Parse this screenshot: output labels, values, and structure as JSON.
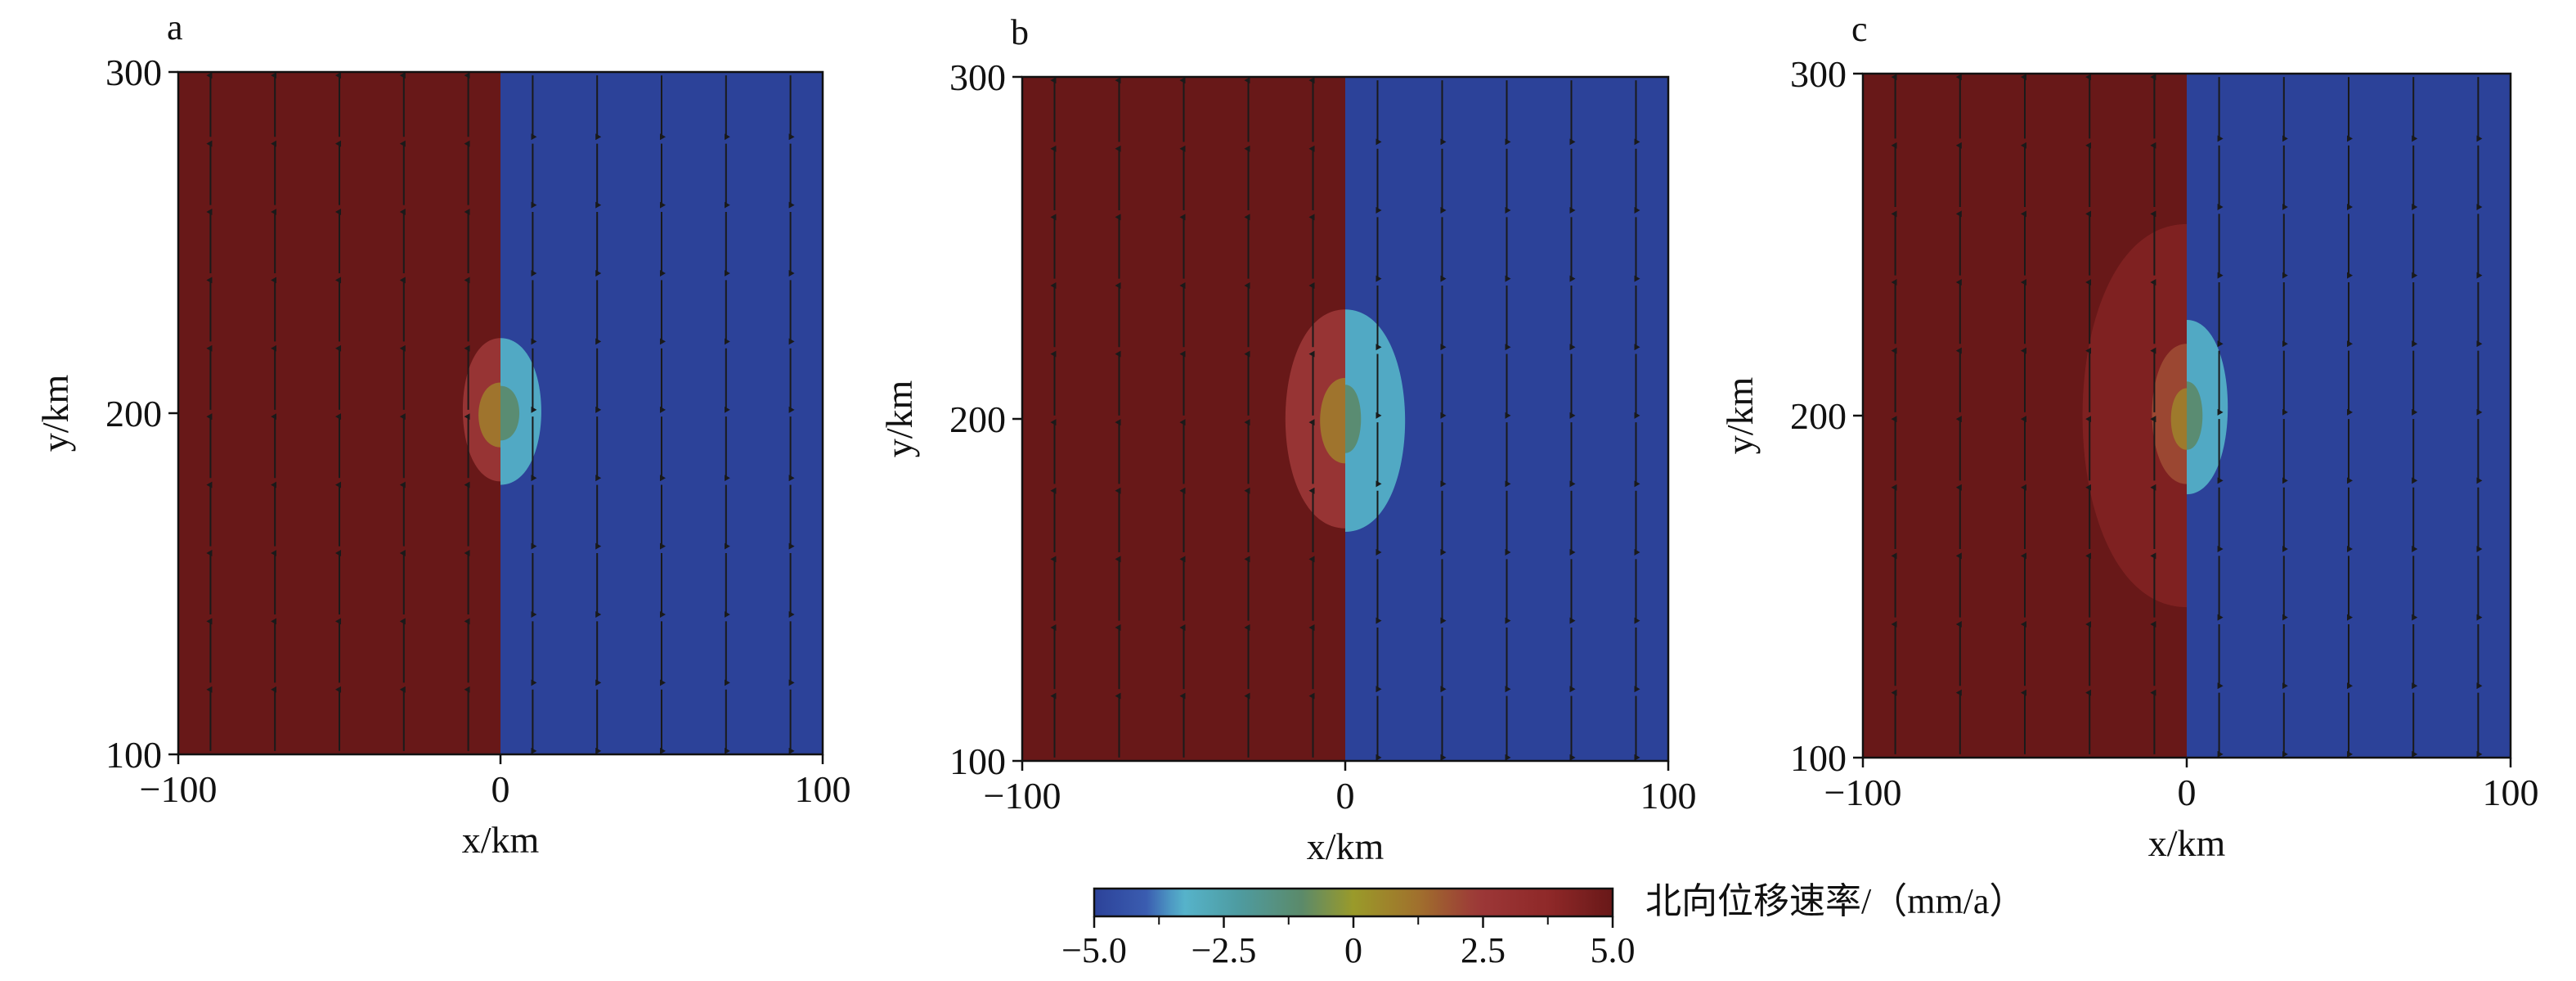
{
  "chart_data": [
    {
      "type": "heatmap",
      "panel_label": "a",
      "xlabel": "x/km",
      "ylabel": "y/km",
      "xlim": [
        -100,
        100
      ],
      "ylim": [
        100,
        300
      ],
      "xticks": [
        "−100",
        "0",
        "100"
      ],
      "yticks": [
        "100",
        "200",
        "300"
      ],
      "far_field": {
        "west_of_fault_mm_a": 5.0,
        "east_of_fault_mm_a": -5.0
      },
      "fault_x_km": 0,
      "anomaly_zones": [
        {
          "side": "west",
          "value_mm_a": 2.5,
          "y_range_km": [
            180,
            222
          ],
          "x_range_km": [
            -12,
            0
          ]
        },
        {
          "side": "west",
          "value_mm_a": 1.0,
          "y_range_km": [
            190,
            209
          ],
          "x_range_km": [
            -7,
            0
          ]
        },
        {
          "side": "east",
          "value_mm_a": -3.2,
          "y_range_km": [
            179,
            222
          ],
          "x_range_km": [
            0,
            13
          ]
        },
        {
          "side": "east",
          "value_mm_a": -1.0,
          "y_range_km": [
            192,
            208
          ],
          "x_range_km": [
            0,
            6
          ]
        }
      ],
      "arrow_grid": {
        "x_km": [
          -90,
          -70,
          -50,
          -30,
          -10,
          10,
          30,
          50,
          70,
          90
        ],
        "y_km": [
          110,
          130,
          150,
          170,
          190,
          210,
          230,
          250,
          270,
          290
        ],
        "direction_west": "north",
        "direction_east": "south"
      }
    },
    {
      "type": "heatmap",
      "panel_label": "b",
      "xlabel": "x/km",
      "ylabel": "y/km",
      "xlim": [
        -100,
        100
      ],
      "ylim": [
        100,
        300
      ],
      "xticks": [
        "−100",
        "0",
        "100"
      ],
      "yticks": [
        "100",
        "200",
        "300"
      ],
      "far_field": {
        "west_of_fault_mm_a": 5.0,
        "east_of_fault_mm_a": -5.0
      },
      "fault_x_km": 0,
      "anomaly_zones": [
        {
          "side": "west",
          "value_mm_a": 2.5,
          "y_range_km": [
            168,
            232
          ],
          "x_range_km": [
            -19,
            0
          ]
        },
        {
          "side": "west",
          "value_mm_a": 1.0,
          "y_range_km": [
            187,
            212
          ],
          "x_range_km": [
            -8,
            0
          ]
        },
        {
          "side": "east",
          "value_mm_a": -3.2,
          "y_range_km": [
            167,
            232
          ],
          "x_range_km": [
            0,
            19
          ]
        },
        {
          "side": "east",
          "value_mm_a": -1.0,
          "y_range_km": [
            190,
            210
          ],
          "x_range_km": [
            0,
            5
          ]
        }
      ],
      "arrow_grid": {
        "x_km": [
          -90,
          -70,
          -50,
          -30,
          -10,
          10,
          30,
          50,
          70,
          90
        ],
        "y_km": [
          110,
          130,
          150,
          170,
          190,
          210,
          230,
          250,
          270,
          290
        ],
        "direction_west": "north",
        "direction_east": "south"
      }
    },
    {
      "type": "heatmap",
      "panel_label": "c",
      "xlabel": "x/km",
      "ylabel": "y/km",
      "xlim": [
        -100,
        100
      ],
      "ylim": [
        100,
        300
      ],
      "xticks": [
        "−100",
        "0",
        "100"
      ],
      "yticks": [
        "100",
        "200",
        "300"
      ],
      "far_field": {
        "west_of_fault_mm_a": 5.0,
        "east_of_fault_mm_a": -5.0
      },
      "fault_x_km": 0,
      "anomaly_zones": [
        {
          "side": "west",
          "value_mm_a": 4.2,
          "y_range_km": [
            144,
            256
          ],
          "x_range_km": [
            -33,
            0
          ]
        },
        {
          "side": "west",
          "value_mm_a": 2.0,
          "y_range_km": [
            180,
            221
          ],
          "x_range_km": [
            -11,
            0
          ]
        },
        {
          "side": "west",
          "value_mm_a": 0.8,
          "y_range_km": [
            190,
            208
          ],
          "x_range_km": [
            -5,
            0
          ]
        },
        {
          "side": "east",
          "value_mm_a": -3.2,
          "y_range_km": [
            177,
            228
          ],
          "x_range_km": [
            0,
            13
          ]
        },
        {
          "side": "east",
          "value_mm_a": -1.0,
          "y_range_km": [
            190,
            210
          ],
          "x_range_km": [
            0,
            5
          ]
        }
      ],
      "arrow_grid": {
        "x_km": [
          -90,
          -70,
          -50,
          -30,
          -10,
          10,
          30,
          50,
          70,
          90
        ],
        "y_km": [
          110,
          130,
          150,
          170,
          190,
          210,
          230,
          250,
          270,
          290
        ],
        "direction_west": "north",
        "direction_east": "south"
      }
    }
  ],
  "colorbar": {
    "label": "北向位移速率/（mm/a）",
    "range": [
      -5.0,
      5.0
    ],
    "tick_labels": [
      "−5.0",
      "−2.5",
      "0",
      "2.5",
      "5.0"
    ],
    "tick_values": [
      -5.0,
      -2.5,
      0,
      2.5,
      5.0
    ],
    "colormap": [
      {
        "v": -5.0,
        "color": "#2c4299"
      },
      {
        "v": -4.0,
        "color": "#3a5cb0"
      },
      {
        "v": -3.3,
        "color": "#56b4cc"
      },
      {
        "v": -2.2,
        "color": "#4e9ba0"
      },
      {
        "v": -1.0,
        "color": "#5b8a6a"
      },
      {
        "v": 0.0,
        "color": "#9a9a2a"
      },
      {
        "v": 1.2,
        "color": "#a0722c"
      },
      {
        "v": 2.4,
        "color": "#9c3838"
      },
      {
        "v": 3.8,
        "color": "#8e2828"
      },
      {
        "v": 5.0,
        "color": "#681818"
      }
    ]
  }
}
